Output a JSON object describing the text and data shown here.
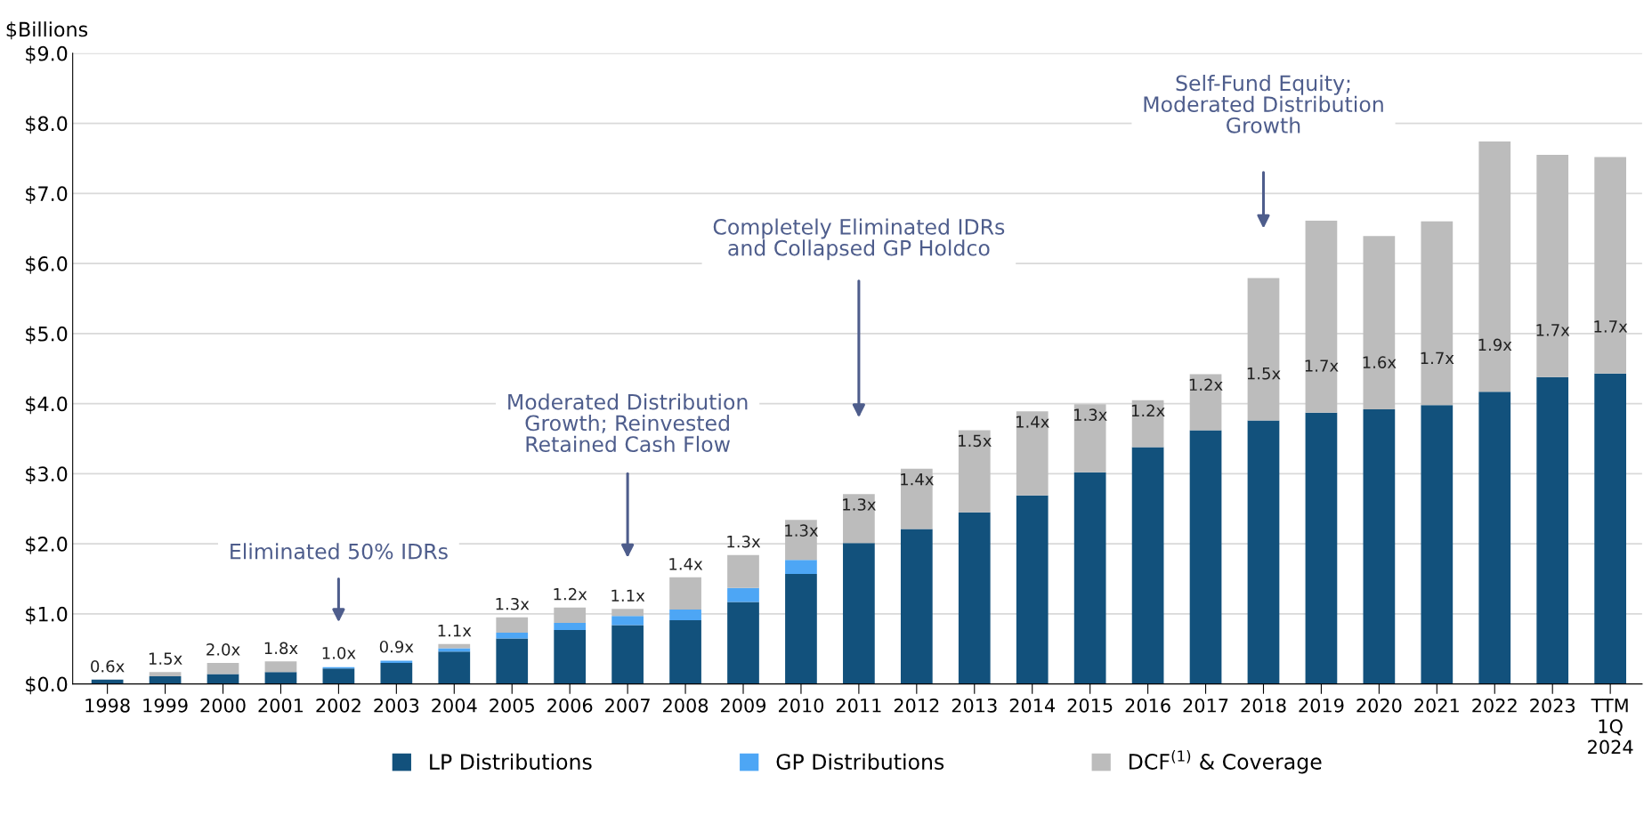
{
  "chart_data": {
    "type": "bar",
    "stacked": true,
    "ylabel": "$Billions",
    "categories": [
      "1998",
      "1999",
      "2000",
      "2001",
      "2002",
      "2003",
      "2004",
      "2005",
      "2006",
      "2007",
      "2008",
      "2009",
      "2010",
      "2011",
      "2012",
      "2013",
      "2014",
      "2015",
      "2016",
      "2017",
      "2018",
      "2019",
      "2020",
      "2021",
      "2022",
      "2023",
      "TTM\n1Q\n2024"
    ],
    "series": [
      {
        "name": "LP Distributions",
        "color": "#12517c",
        "values": [
          0.06,
          0.11,
          0.14,
          0.17,
          0.22,
          0.3,
          0.46,
          0.65,
          0.77,
          0.84,
          0.91,
          1.17,
          1.57,
          2.01,
          2.21,
          2.45,
          2.69,
          3.02,
          3.38,
          3.62,
          3.76,
          3.87,
          3.92,
          3.98,
          4.17,
          4.38,
          4.43
        ]
      },
      {
        "name": "GP Distributions",
        "color": "#4da6f5",
        "values": [
          0,
          0,
          0,
          0,
          0.02,
          0.03,
          0.05,
          0.08,
          0.1,
          0.13,
          0.15,
          0.2,
          0.2,
          0,
          0,
          0,
          0,
          0,
          0,
          0,
          0,
          0,
          0,
          0,
          0,
          0,
          0
        ]
      },
      {
        "name": "DCF$^{(1)}$ & Coverage",
        "color": "#bcbcbc",
        "values": [
          0,
          0.06,
          0.16,
          0.15,
          0,
          0,
          0.06,
          0.22,
          0.22,
          0.1,
          0.46,
          0.47,
          0.57,
          0.7,
          0.86,
          1.17,
          1.2,
          0.97,
          0.67,
          0.8,
          2.03,
          2.74,
          2.47,
          2.62,
          3.57,
          3.17,
          3.09
        ]
      }
    ],
    "ylim": [
      0,
      9
    ],
    "yticks": [
      {
        "value": 0,
        "label": "$0.0"
      },
      {
        "value": 1,
        "label": "$1.0"
      },
      {
        "value": 2,
        "label": "$2.0"
      },
      {
        "value": 3,
        "label": "$3.0"
      },
      {
        "value": 4,
        "label": "$4.0"
      },
      {
        "value": 5,
        "label": "$5.0"
      },
      {
        "value": 6,
        "label": "$6.0"
      },
      {
        "value": 7,
        "label": "$7.0"
      },
      {
        "value": 8,
        "label": "$8.0"
      },
      {
        "value": 9,
        "label": "$9.0"
      }
    ],
    "grid": "y",
    "legend": "bottom",
    "annotations": [
      "Eliminated 50% IDRs",
      "Moderated Distribution\nGrowth; Reinvested\nRetained Cash Flow",
      "Completely Eliminated IDRs\nand Collapsed GP Holdco",
      "Self-Fund Equity;\nModerated Distribution\nGrowth",
      {
        "text": "0.6x",
        "x": "1998",
        "y": 0.06
      },
      {
        "text": "1.5x",
        "x": "1999",
        "y": 0.17
      },
      {
        "text": "2.0x",
        "x": "2000",
        "y": 0.3
      },
      {
        "text": "1.8x",
        "x": "2001",
        "y": 0.32
      },
      {
        "text": "1.0x",
        "x": "2002",
        "y": 0.25
      },
      {
        "text": "0.9x",
        "x": "2003",
        "y": 0.34
      },
      {
        "text": "1.1x",
        "x": "2004",
        "y": 0.57
      },
      {
        "text": "1.3x",
        "x": "2005",
        "y": 0.95
      },
      {
        "text": "1.2x",
        "x": "2006",
        "y": 1.09
      },
      {
        "text": "1.1x",
        "x": "2007",
        "y": 1.07
      },
      {
        "text": "1.4x",
        "x": "2008",
        "y": 1.52
      },
      {
        "text": "1.3x",
        "x": "2009",
        "y": 1.84
      },
      {
        "text": "1.3x",
        "x": "2010",
        "y": 2.34
      },
      {
        "text": "1.3x",
        "x": "2011",
        "y": 2.71
      },
      {
        "text": "1.4x",
        "x": "2012",
        "y": 3.07
      },
      {
        "text": "1.5x",
        "x": "2013",
        "y": 3.62
      },
      {
        "text": "1.4x",
        "x": "2014",
        "y": 3.89
      },
      {
        "text": "1.3x",
        "x": "2015",
        "y": 3.99
      },
      {
        "text": "1.2x",
        "x": "2016",
        "y": 4.05
      },
      {
        "text": "1.2x",
        "x": "2017",
        "y": 4.42
      },
      "1.5x",
      "1.7x",
      "1.6x",
      "1.7x",
      "1.9x",
      "1.7x",
      "1.7x"
    ]
  }
}
